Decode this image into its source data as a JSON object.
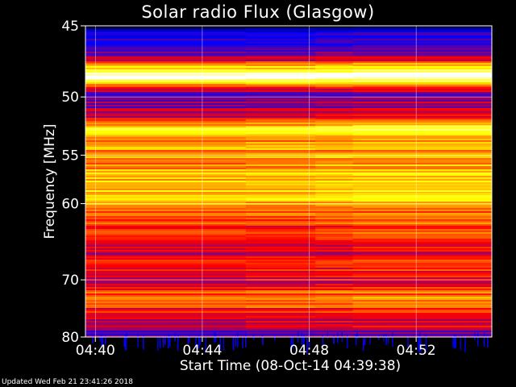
{
  "chart_data": {
    "type": "heatmap",
    "title": "Solar radio Flux (Glasgow)",
    "xlabel": "Start Time (08-Oct-14 04:39:38)",
    "ylabel": "Frequency [MHz]",
    "x_ticks": [
      "04:40",
      "04:44",
      "04:48",
      "04:52"
    ],
    "x_tick_minutes": [
      0.37,
      4.37,
      8.37,
      12.37
    ],
    "x_range_minutes": [
      0,
      15.2
    ],
    "y_ticks": [
      45,
      50,
      55,
      60,
      70,
      80
    ],
    "y_range_mhz": [
      45,
      80
    ],
    "y_scale": "reciprocal",
    "colormap": [
      "#000000",
      "#0000ff",
      "#ff0000",
      "#ffff00",
      "#ffffff"
    ],
    "bands": [
      {
        "mhz": 45.0,
        "level": 0.05
      },
      {
        "mhz": 45.6,
        "level": 0.25
      },
      {
        "mhz": 47.0,
        "level": 0.35
      },
      {
        "mhz": 48.4,
        "level": 0.95
      },
      {
        "mhz": 49.6,
        "level": 0.38
      },
      {
        "mhz": 51.5,
        "level": 0.4
      },
      {
        "mhz": 52.7,
        "level": 0.78
      },
      {
        "mhz": 53.3,
        "level": 0.62
      },
      {
        "mhz": 55.5,
        "level": 0.64
      },
      {
        "mhz": 57.5,
        "level": 0.68
      },
      {
        "mhz": 59.3,
        "level": 0.72
      },
      {
        "mhz": 60.5,
        "level": 0.58
      },
      {
        "mhz": 63.5,
        "level": 0.52
      },
      {
        "mhz": 66.0,
        "level": 0.45
      },
      {
        "mhz": 68.5,
        "level": 0.52
      },
      {
        "mhz": 70.5,
        "level": 0.44
      },
      {
        "mhz": 72.0,
        "level": 0.56
      },
      {
        "mhz": 73.8,
        "level": 0.62
      },
      {
        "mhz": 75.5,
        "level": 0.46
      },
      {
        "mhz": 78.0,
        "level": 0.42
      },
      {
        "mhz": 80.0,
        "level": 0.3
      }
    ],
    "emission_lines": [
      {
        "mhz": 48.5,
        "level": 1.0
      },
      {
        "mhz": 52.7,
        "level": 0.8
      },
      {
        "mhz": 59.3,
        "level": 0.72
      }
    ],
    "grid": true
  },
  "footer": {
    "updated": "Updated Wed Feb 21 23:41:26 2018"
  }
}
